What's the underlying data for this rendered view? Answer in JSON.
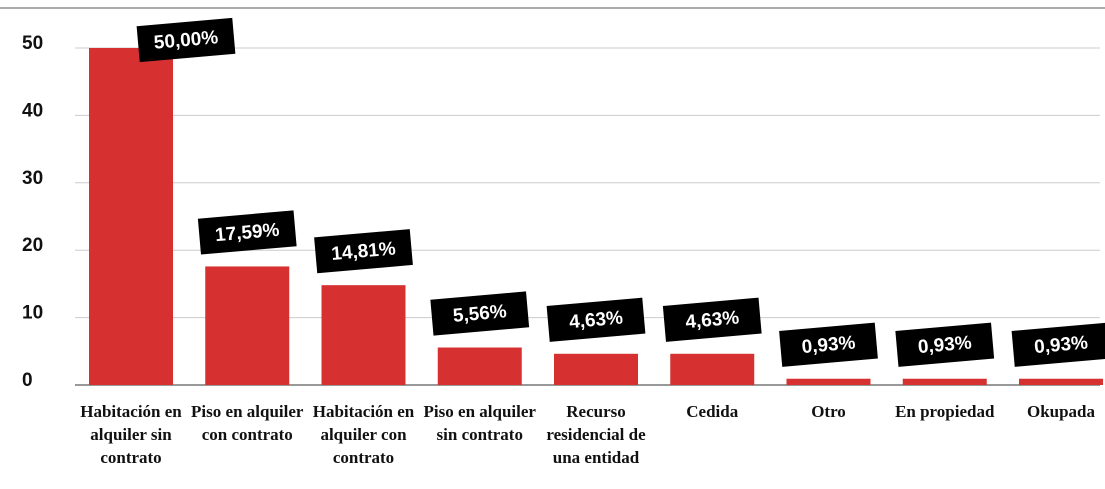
{
  "chart_data": {
    "type": "bar",
    "categories": [
      "Habitación en alquiler sin contrato",
      "Piso en alquiler con contrato",
      "Habitación en alquiler con contrato",
      "Piso en alquiler sin contrato",
      "Recurso residencial de una entidad",
      "Cedida",
      "Otro",
      "En propiedad",
      "Okupada"
    ],
    "values": [
      50,
      17.59,
      14.81,
      5.56,
      4.63,
      4.63,
      0.93,
      0.93,
      0.93
    ],
    "value_labels": [
      "50,00%",
      "17,59%",
      "14,81%",
      "5,56%",
      "4,63%",
      "4,63%",
      "0,93%",
      "0,93%",
      "0,93%"
    ],
    "color": "#d63031",
    "ylim": [
      0,
      50
    ],
    "yticks": [
      0,
      10,
      20,
      30,
      40,
      50
    ],
    "grid": true
  }
}
